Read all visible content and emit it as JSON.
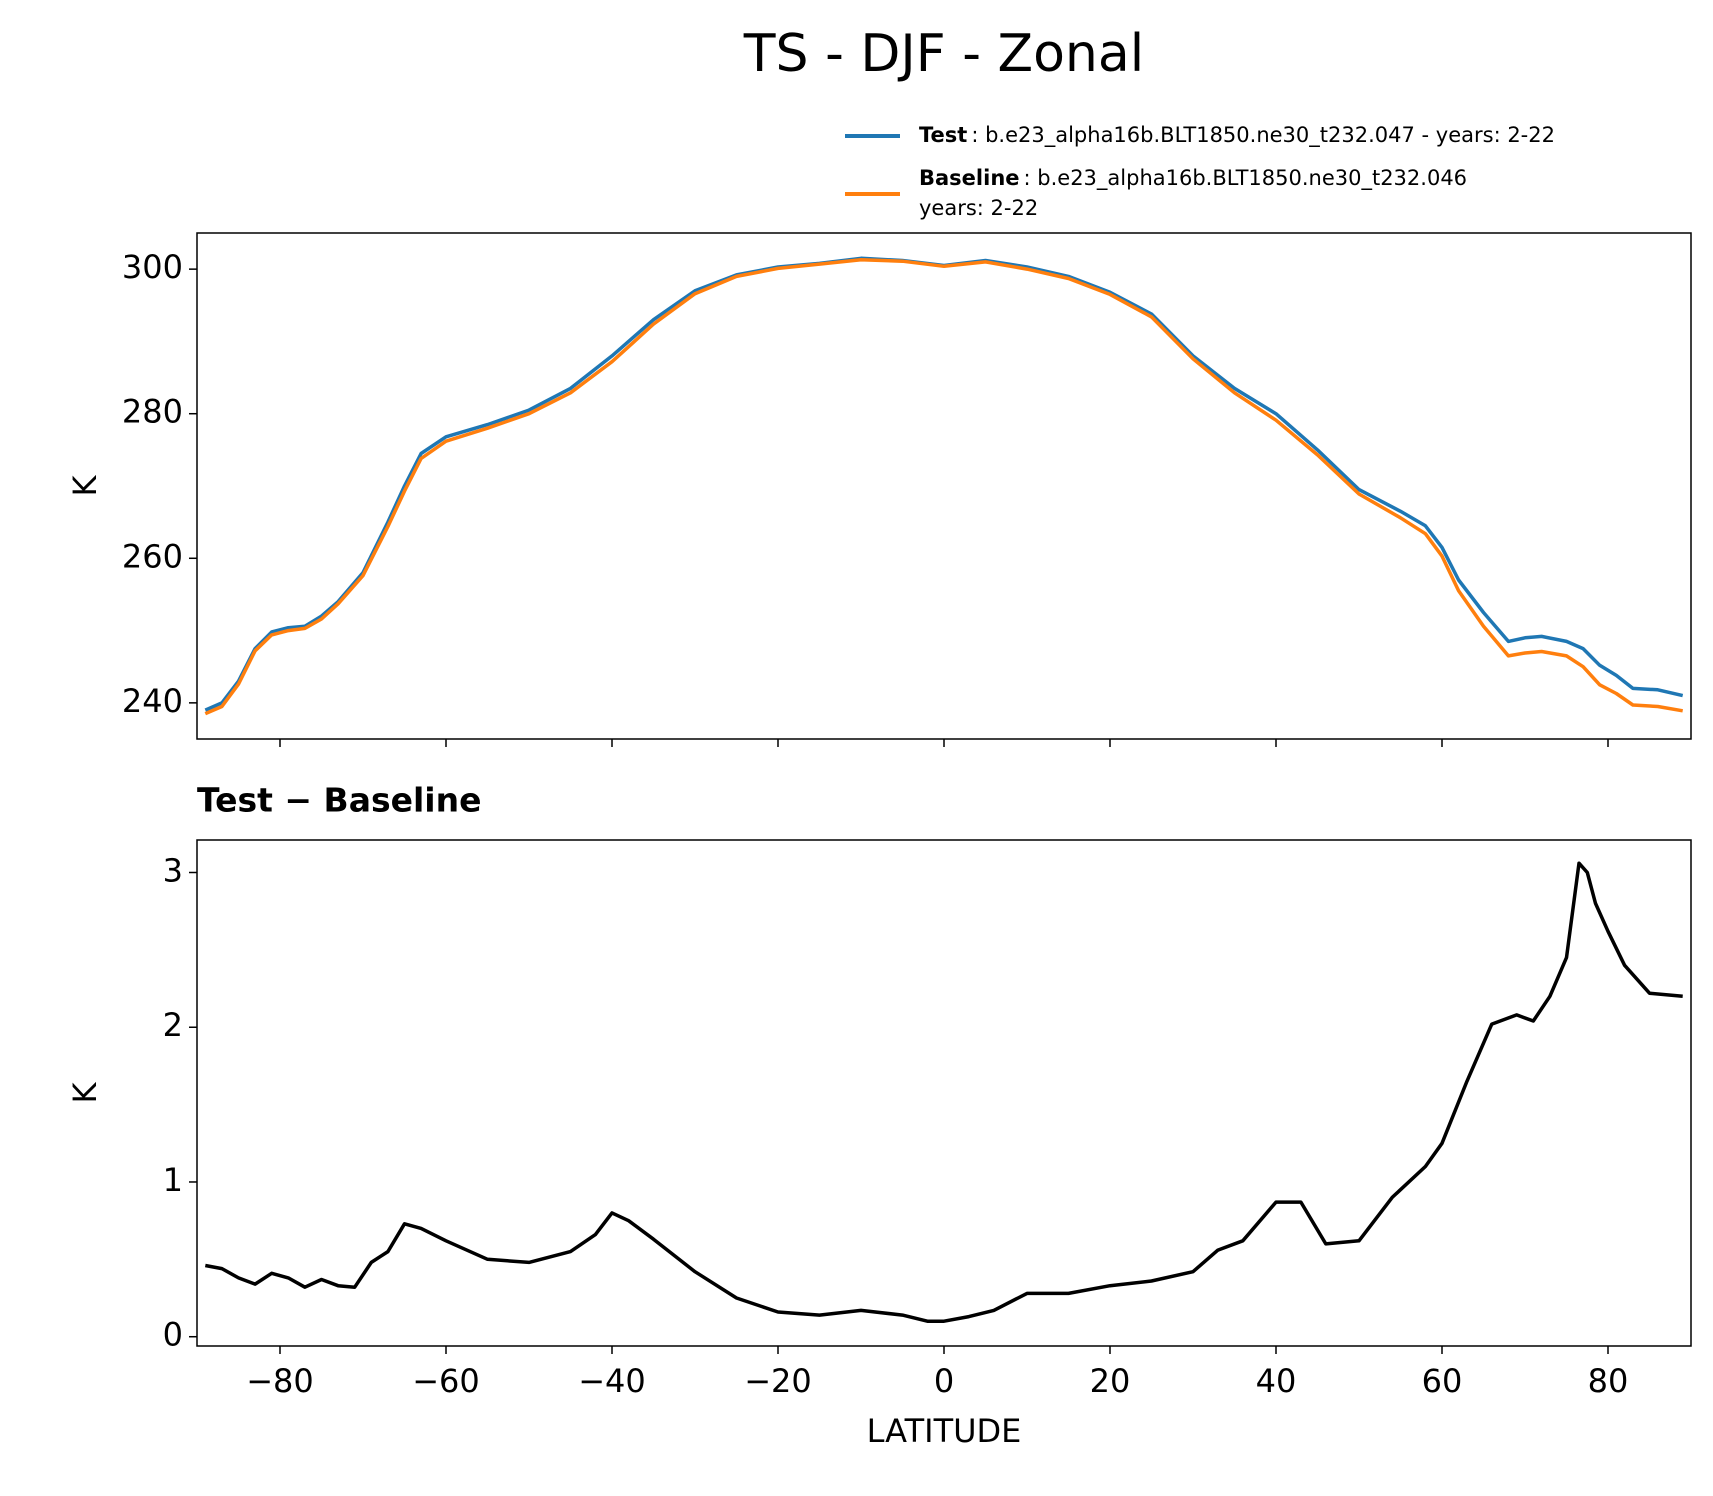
{
  "title": "TS - DJF - Zonal",
  "chart_data": [
    {
      "type": "line",
      "ylabel": "K",
      "xlim": [
        -90,
        90
      ],
      "xticks": [
        -80,
        -60,
        -40,
        -20,
        0,
        20,
        40,
        60,
        80
      ],
      "xtick_labels": false,
      "ylim": [
        235,
        305
      ],
      "yticks": [
        240,
        260,
        280,
        300
      ],
      "legend": "upper right",
      "x": [
        -89,
        -87,
        -85,
        -83,
        -81,
        -79,
        -77,
        -75,
        -73,
        -70,
        -67,
        -65,
        -63,
        -60,
        -55,
        -50,
        -45,
        -40,
        -35,
        -30,
        -25,
        -20,
        -15,
        -10,
        -5,
        0,
        5,
        10,
        15,
        20,
        25,
        30,
        35,
        40,
        45,
        50,
        55,
        58,
        60,
        62,
        65,
        68,
        70,
        72,
        75,
        77,
        79,
        81,
        83,
        86,
        89
      ],
      "series": [
        {
          "name": "Test",
          "description": [
            ": b.e23_alpha16b.BLT1850.ne30_t232.047 - years: 2-22"
          ],
          "color": "#1f77b4",
          "values": [
            239,
            240,
            243,
            247.5,
            249.8,
            250.4,
            250.6,
            252,
            254,
            258,
            265,
            270,
            274.5,
            276.8,
            278.5,
            280.5,
            283.5,
            288,
            293,
            297,
            299.2,
            300.3,
            300.8,
            301.5,
            301.2,
            300.5,
            301.2,
            300.3,
            299,
            296.8,
            293.8,
            288,
            283.5,
            280,
            275,
            269.5,
            266.5,
            264.5,
            261.5,
            257,
            252.5,
            248.5,
            249,
            249.2,
            248.5,
            247.5,
            245.2,
            243.8,
            242,
            241.8,
            241
          ]
        },
        {
          "name": "Baseline",
          "description": [
            ": b.e23_alpha16b.BLT1850.ne30_t232.046",
            "years: 2-22"
          ],
          "color": "#ff7f0e",
          "values": [
            238.5,
            239.5,
            242.6,
            247.2,
            249.4,
            250.0,
            250.3,
            251.6,
            253.7,
            257.6,
            264.4,
            269.3,
            273.8,
            276.2,
            278.0,
            280.0,
            282.9,
            287.2,
            292.4,
            296.6,
            299.0,
            300.1,
            300.7,
            301.3,
            301.1,
            300.4,
            301.0,
            300.0,
            298.7,
            296.5,
            293.4,
            287.6,
            282.9,
            279.1,
            274.3,
            268.9,
            265.6,
            263.4,
            260.3,
            255.5,
            250.6,
            246.5,
            246.9,
            247.1,
            246.5,
            245.0,
            242.5,
            241.3,
            239.7,
            239.5,
            238.9
          ]
        }
      ]
    },
    {
      "type": "line",
      "title": "Test − Baseline",
      "xlabel": "LATITUDE",
      "ylabel": "K",
      "xlim": [
        -90,
        90
      ],
      "xticks": [
        {
          "value": -80,
          "label": "−80"
        },
        {
          "value": -60,
          "label": "−60"
        },
        {
          "value": -40,
          "label": "−40"
        },
        {
          "value": -20,
          "label": "−20"
        },
        0,
        20,
        40,
        60,
        80
      ],
      "xtick_labels": true,
      "ylim": [
        -0.06,
        3.21
      ],
      "yticks": [
        0,
        1,
        2,
        3
      ],
      "x": [
        -89,
        -87,
        -85,
        -83,
        -81,
        -79,
        -77,
        -75,
        -73,
        -71,
        -69,
        -67,
        -65,
        -63,
        -60,
        -55,
        -50,
        -45,
        -42,
        -40,
        -38,
        -35,
        -30,
        -25,
        -20,
        -15,
        -10,
        -5,
        -2,
        0,
        3,
        6,
        10,
        15,
        20,
        25,
        30,
        33,
        36,
        40,
        43,
        46,
        50,
        54,
        58,
        60,
        63,
        66,
        69,
        71,
        73,
        75,
        76.5,
        77.5,
        78.5,
        80,
        82,
        85,
        89
      ],
      "series": [
        {
          "color": "#000000",
          "values": [
            0.46,
            0.44,
            0.38,
            0.34,
            0.41,
            0.38,
            0.32,
            0.37,
            0.33,
            0.32,
            0.48,
            0.55,
            0.73,
            0.7,
            0.62,
            0.5,
            0.48,
            0.55,
            0.66,
            0.8,
            0.75,
            0.63,
            0.42,
            0.25,
            0.16,
            0.14,
            0.17,
            0.14,
            0.1,
            0.1,
            0.13,
            0.17,
            0.28,
            0.28,
            0.33,
            0.36,
            0.42,
            0.56,
            0.62,
            0.87,
            0.87,
            0.6,
            0.62,
            0.9,
            1.1,
            1.25,
            1.65,
            2.02,
            2.08,
            2.04,
            2.2,
            2.45,
            3.06,
            3.0,
            2.8,
            2.62,
            2.4,
            2.22,
            2.2
          ]
        }
      ]
    }
  ]
}
